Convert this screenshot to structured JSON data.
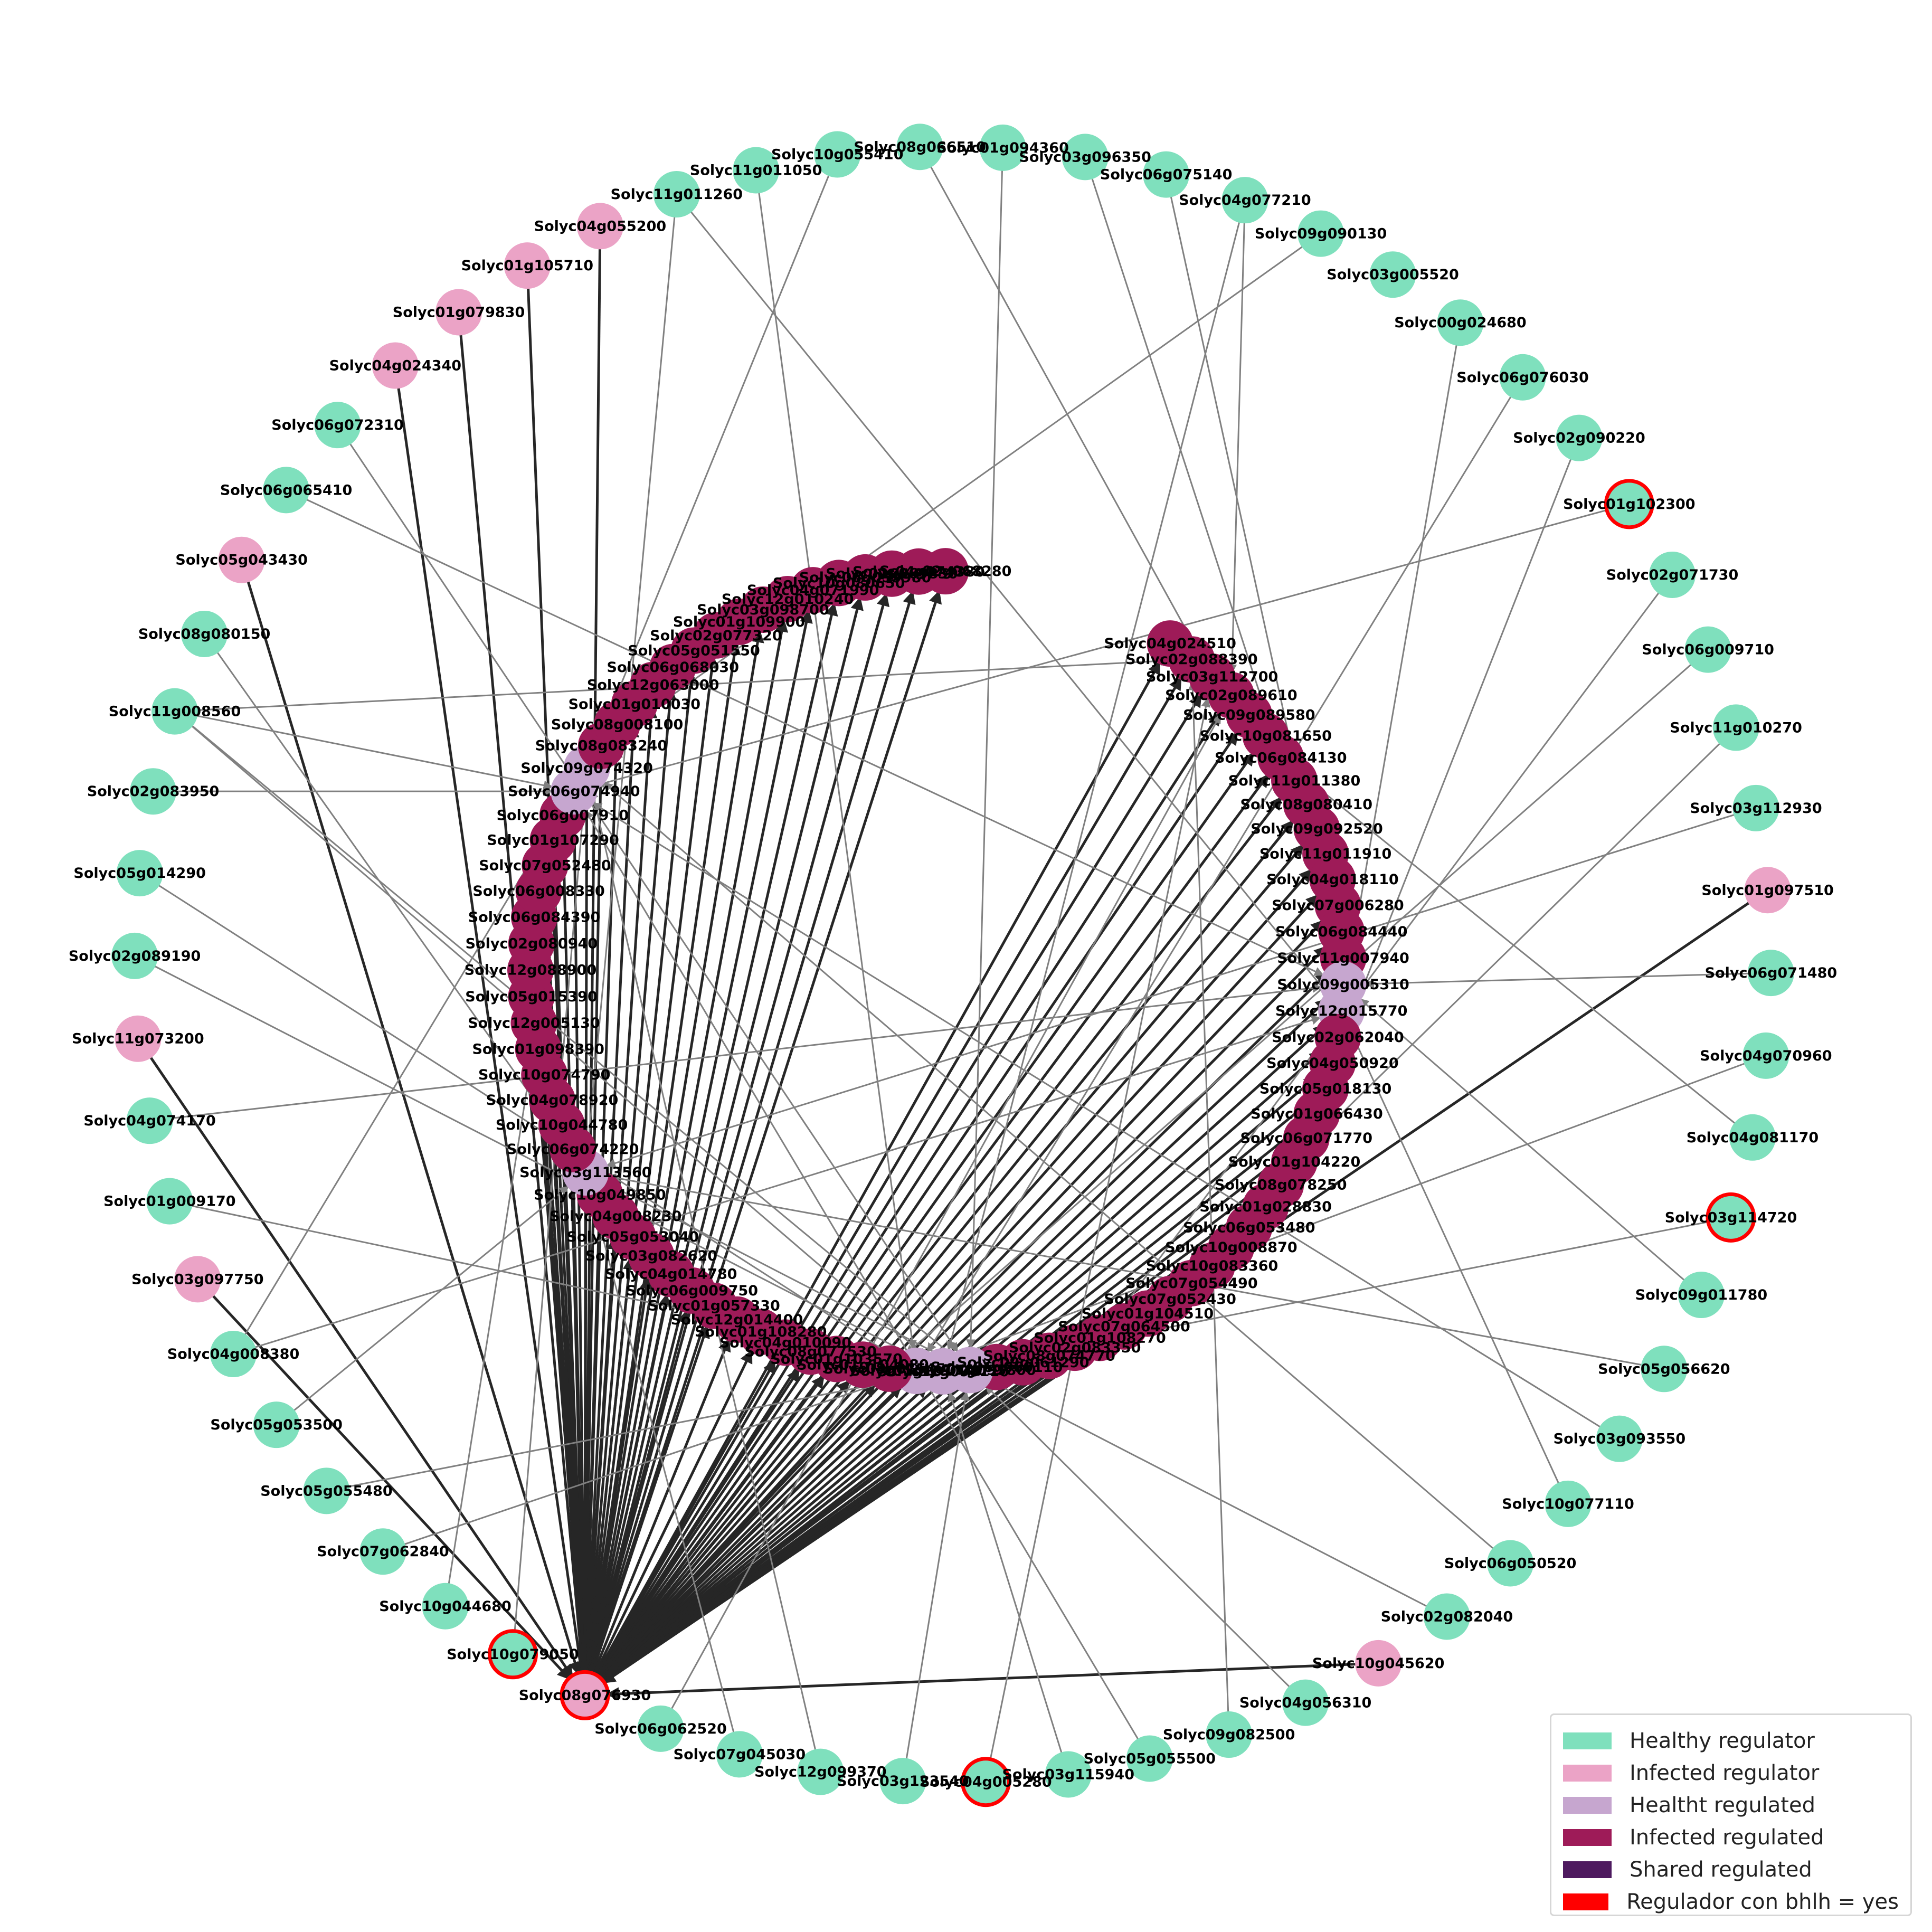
{
  "colors": {
    "healthy_regulator": "#7fe0bd",
    "infected_regulator": "#eba3c6",
    "healthy_regulated": "#c6a6cf",
    "infected_regulated": "#9e1b58",
    "shared_regulated": "#4e1a5f",
    "bhlh_ring": "#ff0000",
    "edge_grey": "#808080",
    "edge_dark": "#262626"
  },
  "legend": {
    "items": [
      {
        "label": "Healthy regulator",
        "color": "#7fe0bd"
      },
      {
        "label": "Infected regulator",
        "color": "#eba3c6"
      },
      {
        "label": "Healtht regulated",
        "color": "#c6a6cf"
      },
      {
        "label": "Infected regulated",
        "color": "#9e1b58"
      },
      {
        "label": "Shared regulated",
        "color": "#4e1a5f"
      },
      {
        "label": "Regulador con bhlh = yes",
        "color": "#ff0000"
      }
    ]
  },
  "regulators": [
    {
      "id": "Solyc01g094360",
      "type": "healthy",
      "bhlh": false
    },
    {
      "id": "Solyc03g096350",
      "type": "healthy",
      "bhlh": false
    },
    {
      "id": "Solyc06g075140",
      "type": "healthy",
      "bhlh": false
    },
    {
      "id": "Solyc04g077210",
      "type": "healthy",
      "bhlh": false
    },
    {
      "id": "Solyc09g090130",
      "type": "healthy",
      "bhlh": false
    },
    {
      "id": "Solyc03g005520",
      "type": "healthy",
      "bhlh": false
    },
    {
      "id": "Solyc00g024680",
      "type": "healthy",
      "bhlh": false
    },
    {
      "id": "Solyc06g076030",
      "type": "healthy",
      "bhlh": false
    },
    {
      "id": "Solyc02g090220",
      "type": "healthy",
      "bhlh": false
    },
    {
      "id": "Solyc01g102300",
      "type": "healthy",
      "bhlh": true
    },
    {
      "id": "Solyc02g071730",
      "type": "healthy",
      "bhlh": false
    },
    {
      "id": "Solyc06g009710",
      "type": "healthy",
      "bhlh": false
    },
    {
      "id": "Solyc11g010270",
      "type": "healthy",
      "bhlh": false
    },
    {
      "id": "Solyc03g112930",
      "type": "healthy",
      "bhlh": false
    },
    {
      "id": "Solyc01g097510",
      "type": "infected",
      "bhlh": false
    },
    {
      "id": "Solyc06g071480",
      "type": "healthy",
      "bhlh": false
    },
    {
      "id": "Solyc04g070960",
      "type": "healthy",
      "bhlh": false
    },
    {
      "id": "Solyc04g081170",
      "type": "healthy",
      "bhlh": false
    },
    {
      "id": "Solyc03g114720",
      "type": "healthy",
      "bhlh": true
    },
    {
      "id": "Solyc09g011780",
      "type": "healthy",
      "bhlh": false
    },
    {
      "id": "Solyc05g056620",
      "type": "healthy",
      "bhlh": false
    },
    {
      "id": "Solyc03g093550",
      "type": "healthy",
      "bhlh": false
    },
    {
      "id": "Solyc10g077110",
      "type": "healthy",
      "bhlh": false
    },
    {
      "id": "Solyc06g050520",
      "type": "healthy",
      "bhlh": false
    },
    {
      "id": "Solyc02g082040",
      "type": "healthy",
      "bhlh": false
    },
    {
      "id": "Solyc10g045620",
      "type": "infected",
      "bhlh": false
    },
    {
      "id": "Solyc04g056310",
      "type": "healthy",
      "bhlh": false
    },
    {
      "id": "Solyc09g082500",
      "type": "healthy",
      "bhlh": false
    },
    {
      "id": "Solyc05g055500",
      "type": "healthy",
      "bhlh": false
    },
    {
      "id": "Solyc03g115940",
      "type": "healthy",
      "bhlh": false
    },
    {
      "id": "Solyc04g005280",
      "type": "healthy",
      "bhlh": true
    },
    {
      "id": "Solyc03g123540",
      "type": "healthy",
      "bhlh": false
    },
    {
      "id": "Solyc12g099370",
      "type": "healthy",
      "bhlh": false
    },
    {
      "id": "Solyc07g045030",
      "type": "healthy",
      "bhlh": false
    },
    {
      "id": "Solyc06g062520",
      "type": "healthy",
      "bhlh": false
    },
    {
      "id": "Solyc08g076930",
      "type": "infected",
      "bhlh": true
    },
    {
      "id": "Solyc10g079050",
      "type": "healthy",
      "bhlh": true
    },
    {
      "id": "Solyc10g044680",
      "type": "healthy",
      "bhlh": false
    },
    {
      "id": "Solyc07g062840",
      "type": "healthy",
      "bhlh": false
    },
    {
      "id": "Solyc05g055480",
      "type": "healthy",
      "bhlh": false
    },
    {
      "id": "Solyc05g053500",
      "type": "healthy",
      "bhlh": false
    },
    {
      "id": "Solyc04g008380",
      "type": "healthy",
      "bhlh": false
    },
    {
      "id": "Solyc03g097750",
      "type": "infected",
      "bhlh": false
    },
    {
      "id": "Solyc01g009170",
      "type": "healthy",
      "bhlh": false
    },
    {
      "id": "Solyc04g074170",
      "type": "healthy",
      "bhlh": false
    },
    {
      "id": "Solyc11g073200",
      "type": "infected",
      "bhlh": false
    },
    {
      "id": "Solyc02g089190",
      "type": "healthy",
      "bhlh": false
    },
    {
      "id": "Solyc05g014290",
      "type": "healthy",
      "bhlh": false
    },
    {
      "id": "Solyc02g083950",
      "type": "healthy",
      "bhlh": false
    },
    {
      "id": "Solyc11g008560",
      "type": "healthy",
      "bhlh": false
    },
    {
      "id": "Solyc08g080150",
      "type": "healthy",
      "bhlh": false
    },
    {
      "id": "Solyc05g043430",
      "type": "infected",
      "bhlh": false
    },
    {
      "id": "Solyc06g065410",
      "type": "healthy",
      "bhlh": false
    },
    {
      "id": "Solyc06g072310",
      "type": "healthy",
      "bhlh": false
    },
    {
      "id": "Solyc04g024340",
      "type": "infected",
      "bhlh": false
    },
    {
      "id": "Solyc01g079830",
      "type": "infected",
      "bhlh": false
    },
    {
      "id": "Solyc01g105710",
      "type": "infected",
      "bhlh": false
    },
    {
      "id": "Solyc04g055200",
      "type": "infected",
      "bhlh": false
    },
    {
      "id": "Solyc11g011260",
      "type": "healthy",
      "bhlh": false
    },
    {
      "id": "Solyc11g011050",
      "type": "healthy",
      "bhlh": false
    },
    {
      "id": "Solyc10g055410",
      "type": "healthy",
      "bhlh": false
    },
    {
      "id": "Solyc08g066510",
      "type": "healthy",
      "bhlh": false
    }
  ],
  "targets": [
    {
      "id": "Solyc04g024510",
      "type": "infected"
    },
    {
      "id": "Solyc02g088390",
      "type": "infected"
    },
    {
      "id": "Solyc03g112700",
      "type": "infected"
    },
    {
      "id": "Solyc02g089610",
      "type": "infected"
    },
    {
      "id": "Solyc09g089580",
      "type": "infected"
    },
    {
      "id": "Solyc10g081650",
      "type": "infected"
    },
    {
      "id": "Solyc06g084130",
      "type": "infected"
    },
    {
      "id": "Solyc11g011380",
      "type": "infected"
    },
    {
      "id": "Solyc08g080410",
      "type": "infected"
    },
    {
      "id": "Solyc09g092520",
      "type": "infected"
    },
    {
      "id": "Solyc11g011910",
      "type": "infected"
    },
    {
      "id": "Solyc04g018110",
      "type": "infected"
    },
    {
      "id": "Solyc07g006280",
      "type": "infected"
    },
    {
      "id": "Solyc06g084440",
      "type": "infected"
    },
    {
      "id": "Solyc11g007940",
      "type": "infected"
    },
    {
      "id": "Solyc09g005310",
      "type": "healthy"
    },
    {
      "id": "Solyc12g015770",
      "type": "healthy"
    },
    {
      "id": "Solyc02g062040",
      "type": "infected"
    },
    {
      "id": "Solyc04g050920",
      "type": "infected"
    },
    {
      "id": "Solyc05g018130",
      "type": "infected"
    },
    {
      "id": "Solyc01g066430",
      "type": "infected"
    },
    {
      "id": "Solyc06g071770",
      "type": "infected"
    },
    {
      "id": "Solyc01g104220",
      "type": "infected"
    },
    {
      "id": "Solyc08g078250",
      "type": "infected"
    },
    {
      "id": "Solyc01g028830",
      "type": "infected"
    },
    {
      "id": "Solyc06g053480",
      "type": "infected"
    },
    {
      "id": "Solyc10g008870",
      "type": "infected"
    },
    {
      "id": "Solyc10g083360",
      "type": "infected"
    },
    {
      "id": "Solyc07g054490",
      "type": "infected"
    },
    {
      "id": "Solyc07g052430",
      "type": "infected"
    },
    {
      "id": "Solyc01g104510",
      "type": "infected"
    },
    {
      "id": "Solyc07g064500",
      "type": "infected"
    },
    {
      "id": "Solyc01g108270",
      "type": "infected"
    },
    {
      "id": "Solyc02g083350",
      "type": "infected"
    },
    {
      "id": "Solyc08g074770",
      "type": "infected"
    },
    {
      "id": "Solyc09g061290",
      "type": "infected"
    },
    {
      "id": "Solyc06g060110",
      "type": "infected"
    },
    {
      "id": "Solyc01g095800",
      "type": "healthy"
    },
    {
      "id": "Solyc12g098110",
      "type": "healthy"
    },
    {
      "id": "Solyc01g101740",
      "type": "healthy"
    },
    {
      "id": "Solyc08g075450",
      "type": "infected"
    },
    {
      "id": "Solyc01g104080",
      "type": "infected"
    },
    {
      "id": "Solyc01g103570",
      "type": "infected"
    },
    {
      "id": "Solyc08g077530",
      "type": "infected"
    },
    {
      "id": "Solyc04g010090",
      "type": "infected"
    },
    {
      "id": "Solyc01g108280",
      "type": "infected"
    },
    {
      "id": "Solyc12g014400",
      "type": "infected"
    },
    {
      "id": "Solyc01g057330",
      "type": "infected"
    },
    {
      "id": "Solyc06g009750",
      "type": "infected"
    },
    {
      "id": "Solyc04g014780",
      "type": "infected"
    },
    {
      "id": "Solyc03g082620",
      "type": "infected"
    },
    {
      "id": "Solyc05g053040",
      "type": "infected"
    },
    {
      "id": "Solyc04g008230",
      "type": "infected"
    },
    {
      "id": "Solyc10g049850",
      "type": "infected"
    },
    {
      "id": "Solyc03g113560",
      "type": "healthy"
    },
    {
      "id": "Solyc06g074220",
      "type": "infected"
    },
    {
      "id": "Solyc10g044780",
      "type": "infected"
    },
    {
      "id": "Solyc04g078920",
      "type": "infected"
    },
    {
      "id": "Solyc10g074790",
      "type": "infected"
    },
    {
      "id": "Solyc01g098390",
      "type": "infected"
    },
    {
      "id": "Solyc12g005130",
      "type": "infected"
    },
    {
      "id": "Solyc05g015390",
      "type": "infected"
    },
    {
      "id": "Solyc12g088900",
      "type": "infected"
    },
    {
      "id": "Solyc02g080940",
      "type": "infected"
    },
    {
      "id": "Solyc06g084390",
      "type": "infected"
    },
    {
      "id": "Solyc06g008330",
      "type": "infected"
    },
    {
      "id": "Solyc07g052480",
      "type": "infected"
    },
    {
      "id": "Solyc01g107290",
      "type": "infected"
    },
    {
      "id": "Solyc06g007910",
      "type": "infected"
    },
    {
      "id": "Solyc06g074940",
      "type": "healthy"
    },
    {
      "id": "Solyc09g074320",
      "type": "healthy"
    },
    {
      "id": "Solyc08g083240",
      "type": "infected"
    },
    {
      "id": "Solyc08g008100",
      "type": "infected"
    },
    {
      "id": "Solyc01g010030",
      "type": "infected"
    },
    {
      "id": "Solyc12g063000",
      "type": "infected"
    },
    {
      "id": "Solyc06g068030",
      "type": "infected"
    },
    {
      "id": "Solyc05g051550",
      "type": "infected"
    },
    {
      "id": "Solyc02g077320",
      "type": "infected"
    },
    {
      "id": "Solyc01g109900",
      "type": "infected"
    },
    {
      "id": "Solyc03g098700",
      "type": "infected"
    },
    {
      "id": "Solyc12g010240",
      "type": "infected"
    },
    {
      "id": "Solyc04g071990",
      "type": "infected"
    },
    {
      "id": "Solyc10g080650",
      "type": "infected"
    },
    {
      "id": "Solyc06g059980",
      "type": "infected"
    },
    {
      "id": "Solyc02g069830",
      "type": "infected"
    },
    {
      "id": "Solyc04g074380",
      "type": "infected"
    },
    {
      "id": "Solyc02g068280",
      "type": "infected"
    }
  ],
  "edges": [
    {
      "from": "Solyc08g076930",
      "to": "*",
      "style": "dark"
    },
    {
      "from": "Solyc01g097510",
      "to": "Solyc08g076930",
      "style": "dark"
    },
    {
      "from": "Solyc10g045620",
      "to": "Solyc08g076930",
      "style": "dark"
    },
    {
      "from": "Solyc04g055200",
      "to": "Solyc08g076930",
      "style": "dark"
    },
    {
      "from": "Solyc04g024340",
      "to": "Solyc08g076930",
      "style": "dark"
    },
    {
      "from": "Solyc01g079830",
      "to": "Solyc08g076930",
      "style": "dark"
    },
    {
      "from": "Solyc01g105710",
      "to": "Solyc08g076930",
      "style": "dark"
    },
    {
      "from": "Solyc05g043430",
      "to": "Solyc08g076930",
      "style": "dark"
    },
    {
      "from": "Solyc11g073200",
      "to": "Solyc08g076930",
      "style": "dark"
    },
    {
      "from": "Solyc03g097750",
      "to": "Solyc08g076930",
      "style": "dark"
    },
    {
      "from": "Solyc01g094360",
      "to": "Solyc01g095800",
      "style": "grey"
    },
    {
      "from": "Solyc03g096350",
      "to": "Solyc06g084130",
      "style": "grey"
    },
    {
      "from": "Solyc06g075140",
      "to": "Solyc09g005310",
      "style": "grey"
    },
    {
      "from": "Solyc04g077210",
      "to": "Solyc02g089610",
      "style": "grey"
    },
    {
      "from": "Solyc04g077210",
      "to": "Solyc12g098110",
      "style": "grey"
    },
    {
      "from": "Solyc09g090130",
      "to": "Solyc08g083240",
      "style": "grey"
    },
    {
      "from": "Solyc00g024680",
      "to": "Solyc12g015770",
      "style": "grey"
    },
    {
      "from": "Solyc06g076030",
      "to": "Solyc01g101740",
      "style": "grey"
    },
    {
      "from": "Solyc02g090220",
      "to": "Solyc01g104220",
      "style": "grey"
    },
    {
      "from": "Solyc01g102300",
      "to": "Solyc06g074940",
      "style": "grey"
    },
    {
      "from": "Solyc02g071730",
      "to": "Solyc01g108270",
      "style": "grey"
    },
    {
      "from": "Solyc06g009710",
      "to": "Solyc08g075450",
      "style": "grey"
    },
    {
      "from": "Solyc11g010270",
      "to": "Solyc07g064500",
      "style": "grey"
    },
    {
      "from": "Solyc03g112930",
      "to": "Solyc03g113560",
      "style": "grey"
    },
    {
      "from": "Solyc06g071480",
      "to": "Solyc09g005310",
      "style": "grey"
    },
    {
      "from": "Solyc04g070960",
      "to": "Solyc01g101740",
      "style": "grey"
    },
    {
      "from": "Solyc04g081170",
      "to": "Solyc06g084130",
      "style": "grey"
    },
    {
      "from": "Solyc03g114720",
      "to": "Solyc12g098110",
      "style": "grey"
    },
    {
      "from": "Solyc09g011780",
      "to": "Solyc09g005310",
      "style": "grey"
    },
    {
      "from": "Solyc05g056620",
      "to": "Solyc03g113560",
      "style": "grey"
    },
    {
      "from": "Solyc03g093550",
      "to": "Solyc06g074940",
      "style": "grey"
    },
    {
      "from": "Solyc10g077110",
      "to": "Solyc12g015770",
      "style": "grey"
    },
    {
      "from": "Solyc06g050520",
      "to": "Solyc09g074320",
      "style": "grey"
    },
    {
      "from": "Solyc02g082040",
      "to": "Solyc03g113560",
      "style": "grey"
    },
    {
      "from": "Solyc04g056310",
      "to": "Solyc01g095800",
      "style": "grey"
    },
    {
      "from": "Solyc09g082500",
      "to": "Solyc02g088390",
      "style": "grey"
    },
    {
      "from": "Solyc05g055500",
      "to": "Solyc06g074940",
      "style": "grey"
    },
    {
      "from": "Solyc03g115940",
      "to": "Solyc12g098110",
      "style": "grey"
    },
    {
      "from": "Solyc04g005280",
      "to": "Solyc03g112700",
      "style": "grey"
    },
    {
      "from": "Solyc03g123540",
      "to": "Solyc01g095800",
      "style": "grey"
    },
    {
      "from": "Solyc12g099370",
      "to": "Solyc09g074320",
      "style": "grey"
    },
    {
      "from": "Solyc07g045030",
      "to": "Solyc03g113560",
      "style": "grey"
    },
    {
      "from": "Solyc06g062520",
      "to": "Solyc02g089610",
      "style": "grey"
    },
    {
      "from": "Solyc10g079050",
      "to": "Solyc09g074320",
      "style": "grey"
    },
    {
      "from": "Solyc10g044680",
      "to": "Solyc06g074940",
      "style": "grey"
    },
    {
      "from": "Solyc07g062840",
      "to": "Solyc01g101740",
      "style": "grey"
    },
    {
      "from": "Solyc05g055480",
      "to": "Solyc12g098110",
      "style": "grey"
    },
    {
      "from": "Solyc05g053500",
      "to": "Solyc03g113560",
      "style": "grey"
    },
    {
      "from": "Solyc04g008380",
      "to": "Solyc09g074320",
      "style": "grey"
    },
    {
      "from": "Solyc04g008380",
      "to": "Solyc12g015770",
      "style": "grey"
    },
    {
      "from": "Solyc01g009170",
      "to": "Solyc01g095800",
      "style": "grey"
    },
    {
      "from": "Solyc04g074170",
      "to": "Solyc09g005310",
      "style": "grey"
    },
    {
      "from": "Solyc02g089190",
      "to": "Solyc12g098110",
      "style": "grey"
    },
    {
      "from": "Solyc05g014290",
      "to": "Solyc01g101740",
      "style": "grey"
    },
    {
      "from": "Solyc02g083950",
      "to": "Solyc06g074940",
      "style": "grey"
    },
    {
      "from": "Solyc11g008560",
      "to": "Solyc02g088390",
      "style": "grey"
    },
    {
      "from": "Solyc11g008560",
      "to": "Solyc06g074940",
      "style": "grey"
    },
    {
      "from": "Solyc11g008560",
      "to": "Solyc01g095800",
      "style": "grey"
    },
    {
      "from": "Solyc11g008560",
      "to": "Solyc12g098110",
      "style": "grey"
    },
    {
      "from": "Solyc08g080150",
      "to": "Solyc03g113560",
      "style": "grey"
    },
    {
      "from": "Solyc06g065410",
      "to": "Solyc09g005310",
      "style": "grey"
    },
    {
      "from": "Solyc06g072310",
      "to": "Solyc01g095800",
      "style": "grey"
    },
    {
      "from": "Solyc11g011260",
      "to": "Solyc03g113560",
      "style": "grey"
    },
    {
      "from": "Solyc11g011260",
      "to": "Solyc12g015770",
      "style": "grey"
    },
    {
      "from": "Solyc11g011050",
      "to": "Solyc01g101740",
      "style": "grey"
    },
    {
      "from": "Solyc10g055410",
      "to": "Solyc09g074320",
      "style": "grey"
    },
    {
      "from": "Solyc08g066510",
      "to": "Solyc03g112700",
      "style": "grey"
    }
  ]
}
